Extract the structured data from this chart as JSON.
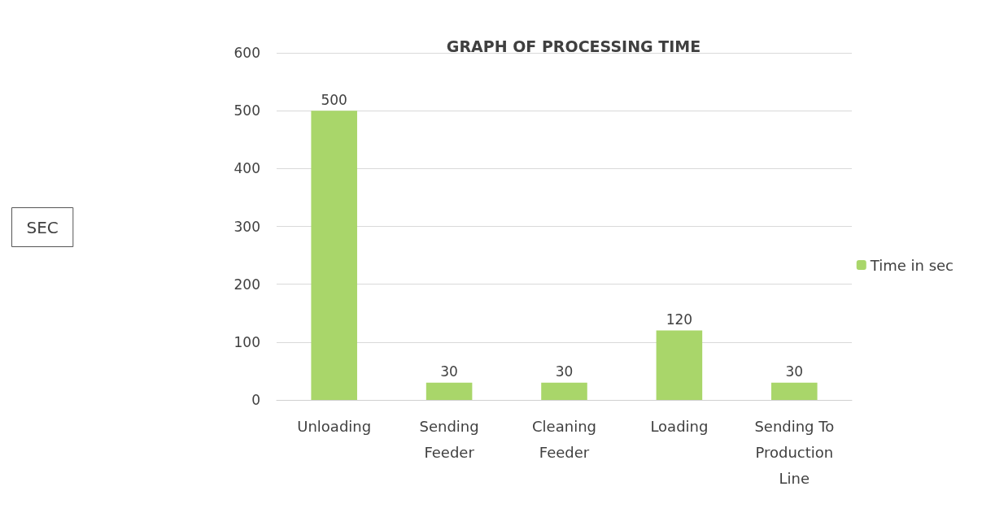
{
  "chart_data": {
    "type": "bar",
    "title": "GRAPH OF PROCESSING TIME",
    "annotations": [
      "SEC"
    ],
    "categories": [
      "Unloading",
      "Sending\nFeeder",
      "Cleaning\nFeeder",
      "Loading",
      "Sending To\nProduction\nLine"
    ],
    "series": [
      {
        "name": "Time in sec",
        "color": "#a9d66a",
        "values": [
          500,
          30,
          30,
          120,
          30
        ]
      }
    ],
    "ylim": [
      0,
      600
    ],
    "yticks": [
      0,
      100,
      200,
      300,
      400,
      500,
      600
    ],
    "grid": "y",
    "legend": "right",
    "data_labels": true
  }
}
